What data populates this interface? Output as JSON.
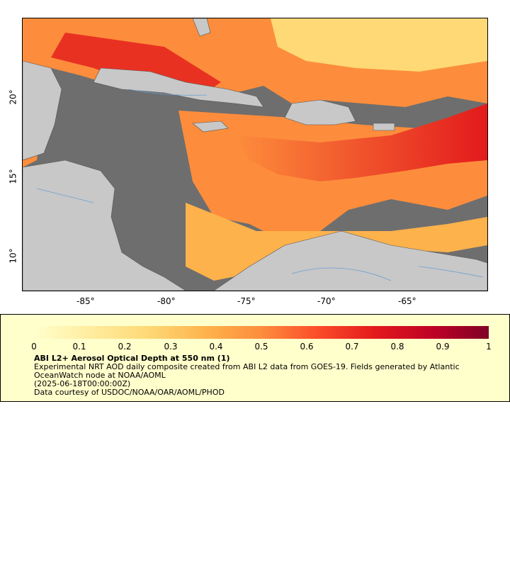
{
  "map": {
    "lon_ticks": [
      "-85°",
      "-80°",
      "-75°",
      "-70°",
      "-65°"
    ],
    "lat_ticks": [
      "20°",
      "15°",
      "10°"
    ]
  },
  "legend": {
    "colorbar_ticks": [
      "0",
      "0.1",
      "0.2",
      "0.3",
      "0.4",
      "0.5",
      "0.6",
      "0.7",
      "0.8",
      "0.9",
      "1"
    ],
    "title": "ABI L2+ Aerosol Optical Depth at 550 nm (1)",
    "line1": "Experimental NRT AOD daily composite created from ABI L2 data from GOES-19. Fields generated by Atlantic",
    "line2": "OceanWatch node at NOAA/AOML",
    "line3": "(2025-06-18T00:00:00Z)",
    "line4": "Data courtesy of USDOC/NOAA/OAR/AOML/PHOD"
  },
  "colors": {
    "land": "#c8c8c8",
    "no_data": "#6e6e6e",
    "legend_bg": "#ffffcc",
    "aod_scale": [
      "#ffffcc",
      "#ffeda0",
      "#fed976",
      "#feb24c",
      "#fd8d3c",
      "#fc4e2a",
      "#e31a1c",
      "#bd0026",
      "#800026"
    ]
  }
}
